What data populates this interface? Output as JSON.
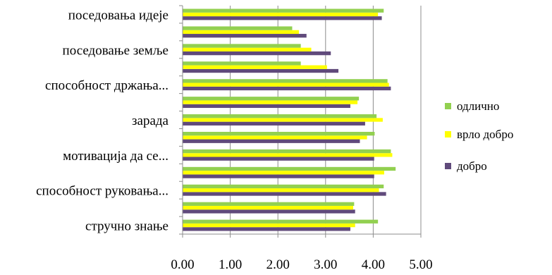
{
  "chart_data": {
    "type": "bar",
    "orientation": "horizontal",
    "title": "",
    "xlabel": "",
    "ylabel": "",
    "xlim": [
      0,
      5
    ],
    "xticks": [
      "0.00",
      "1.00",
      "2.00",
      "3.00",
      "4.00",
      "5.00"
    ],
    "grid": "vertical",
    "legend_position": "right",
    "categories": [
      "стручно знање",
      "",
      "способност руковања...",
      "",
      "мотивација да се...",
      "",
      "зарада",
      "",
      "способност држања...",
      "",
      "поседовање земље",
      "",
      "поседовања идеје"
    ],
    "series": [
      {
        "name": "добро",
        "color": "#604A7B",
        "values": [
          3.52,
          3.62,
          4.27,
          4.02,
          4.02,
          3.72,
          3.83,
          3.52,
          4.37,
          3.27,
          3.11,
          2.6,
          4.18
        ]
      },
      {
        "name": "врло добро",
        "color": "#FFFF00",
        "values": [
          3.62,
          3.58,
          4.12,
          4.23,
          4.4,
          3.87,
          4.2,
          3.67,
          4.33,
          3.03,
          2.7,
          2.44,
          4.1
        ]
      },
      {
        "name": "одлично",
        "color": "#92D050",
        "values": [
          4.1,
          3.6,
          4.22,
          4.47,
          4.37,
          4.03,
          4.07,
          3.7,
          4.3,
          2.48,
          2.48,
          2.3,
          4.22
        ]
      }
    ]
  },
  "legend": {
    "items": [
      {
        "label": "одлично",
        "color": "#92D050"
      },
      {
        "label": "врло добро",
        "color": "#FFFF00"
      },
      {
        "label": "добро",
        "color": "#604A7B"
      }
    ]
  }
}
